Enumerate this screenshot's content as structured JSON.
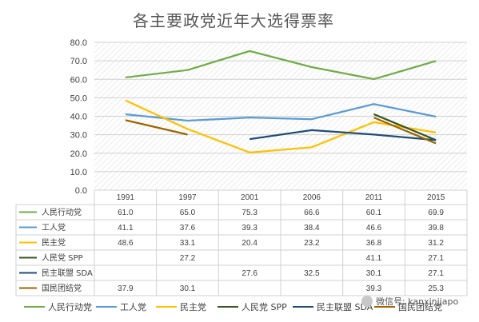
{
  "chart_data": {
    "type": "line",
    "title": "各主要政党近年大选得票率",
    "categories": [
      "1991",
      "1997",
      "2001",
      "2006",
      "2011",
      "2015"
    ],
    "y_ticks": [
      "0.0",
      "10.0",
      "20.0",
      "30.0",
      "40.0",
      "50.0",
      "60.0",
      "70.0",
      "80.0"
    ],
    "ylim": [
      0,
      80
    ],
    "grid": true,
    "legend_position": "bottom",
    "series": [
      {
        "name": "人民行动党",
        "color": "#70ad47",
        "values": [
          61.0,
          65.0,
          75.3,
          66.6,
          60.1,
          69.9
        ],
        "labels": [
          "61.0",
          "65.0",
          "75.3",
          "66.6",
          "60.1",
          "69.9"
        ]
      },
      {
        "name": "工人党",
        "color": "#5b9bd5",
        "values": [
          41.1,
          37.6,
          39.3,
          38.4,
          46.6,
          39.8
        ],
        "labels": [
          "41.1",
          "37.6",
          "39.3",
          "38.4",
          "46.6",
          "39.8"
        ]
      },
      {
        "name": "民主党",
        "color": "#ffc000",
        "values": [
          48.6,
          33.1,
          20.4,
          23.2,
          36.8,
          31.2
        ],
        "labels": [
          "48.6",
          "33.1",
          "20.4",
          "23.2",
          "36.8",
          "31.2"
        ]
      },
      {
        "name": "人民党 SPP",
        "color": "#385723",
        "values": [
          null,
          27.2,
          null,
          null,
          41.1,
          27.1
        ],
        "labels": [
          "",
          "27.2",
          "",
          "",
          "41.1",
          "27.1"
        ]
      },
      {
        "name": "民主联盟 SDA",
        "color": "#1f4e79",
        "values": [
          null,
          null,
          27.6,
          32.5,
          30.1,
          27.1
        ],
        "labels": [
          "",
          "",
          "27.6",
          "32.5",
          "30.1",
          "27.1"
        ]
      },
      {
        "name": "国民团结党",
        "color": "#9c6500",
        "values": [
          37.9,
          30.1,
          null,
          null,
          39.3,
          25.3
        ],
        "labels": [
          "37.9",
          "30.1",
          "",
          "",
          "39.3",
          "25.3"
        ]
      }
    ]
  },
  "watermark": {
    "text": "微信号: kanxinjiapo"
  }
}
